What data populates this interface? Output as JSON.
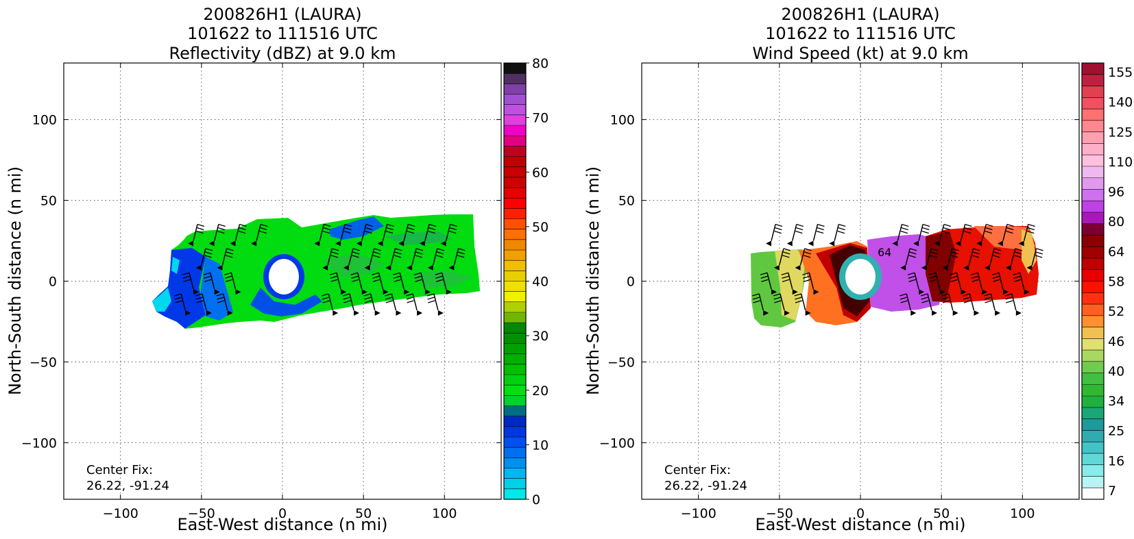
{
  "chart_data": [
    {
      "type": "heatmap",
      "title_lines": [
        "200826H1 (LAURA)",
        "101622 to 111516 UTC",
        "Reflectivity (dBZ) at 9.0 km"
      ],
      "xlabel": "East-West distance (n mi)",
      "ylabel": "North-South distance (n mi)",
      "xlim": [
        -135,
        135
      ],
      "ylim": [
        -135,
        135
      ],
      "xticks": [
        -100,
        -50,
        0,
        50,
        100
      ],
      "yticks": [
        -100,
        -50,
        0,
        50,
        100
      ],
      "xtick_labels": [
        "−100",
        "−50",
        "0",
        "50",
        "100"
      ],
      "ytick_labels": [
        "−100",
        "−50",
        "0",
        "50",
        "100"
      ],
      "grid": true,
      "annotation": [
        "Center Fix:",
        "26.22, -91.24"
      ],
      "colorbar": {
        "min": 0,
        "max": 80,
        "ticks": [
          0,
          10,
          20,
          30,
          40,
          50,
          60,
          70,
          80
        ],
        "colors": [
          "#00e8e8",
          "#00d0e8",
          "#00b8f0",
          "#0090f0",
          "#0070f0",
          "#0050f0",
          "#0038e0",
          "#0028c8",
          "#006e82",
          "#00d030",
          "#00e010",
          "#00d010",
          "#00c000",
          "#00b000",
          "#00a000",
          "#009000",
          "#008800",
          "#70b800",
          "#b0d000",
          "#f0f000",
          "#f0e000",
          "#e8d000",
          "#f0c000",
          "#f0a000",
          "#f08800",
          "#ff7000",
          "#ff5000",
          "#ff2000",
          "#ff0000",
          "#e80000",
          "#d00000",
          "#c80000",
          "#c00000",
          "#c00020",
          "#e00080",
          "#f000c8",
          "#e040e0",
          "#c050e0",
          "#a050d0",
          "#8040a8",
          "#503060",
          "#101010"
        ]
      },
      "wind_barbs": "present"
    },
    {
      "type": "heatmap",
      "title_lines": [
        "200826H1 (LAURA)",
        "101622 to 111516 UTC",
        "Wind Speed (kt) at 9.0 km"
      ],
      "xlabel": "East-West distance (n mi)",
      "ylabel": "North-South distance (n mi)",
      "xlim": [
        -135,
        135
      ],
      "ylim": [
        -135,
        135
      ],
      "xticks": [
        -100,
        -50,
        0,
        50,
        100
      ],
      "yticks": [
        -100,
        -50,
        0,
        50,
        100
      ],
      "xtick_labels": [
        "−100",
        "−50",
        "0",
        "50",
        "100"
      ],
      "ytick_labels": [
        "−100",
        "−50",
        "0",
        "50",
        "100"
      ],
      "grid": true,
      "annotation": [
        "Center Fix:",
        "26.22, -91.24"
      ],
      "contour_label": "64",
      "colorbar": {
        "tick_labels": [
          "7",
          "16",
          "25",
          "34",
          "40",
          "46",
          "52",
          "58",
          "64",
          "80",
          "96",
          "110",
          "125",
          "140",
          "155"
        ],
        "colors": [
          "#ffffff",
          "#b8f4f4",
          "#88ecec",
          "#60d8d8",
          "#40c4c8",
          "#30acb0",
          "#20989c",
          "#18a878",
          "#20b040",
          "#30b830",
          "#40c040",
          "#70cc50",
          "#a8d860",
          "#e0e070",
          "#f0c050",
          "#ff9030",
          "#ff6020",
          "#ff3010",
          "#ff1000",
          "#e80000",
          "#c00000",
          "#a00000",
          "#880000",
          "#7a0030",
          "#a818b8",
          "#c040e8",
          "#d070f0",
          "#e098f0",
          "#f0b8f0",
          "#ffc0e0",
          "#ffb0c8",
          "#ffa0b0",
          "#ff8890",
          "#ff7070",
          "#f05060",
          "#e04050",
          "#c02040",
          "#a01030"
        ]
      },
      "wind_barbs": "present"
    }
  ]
}
